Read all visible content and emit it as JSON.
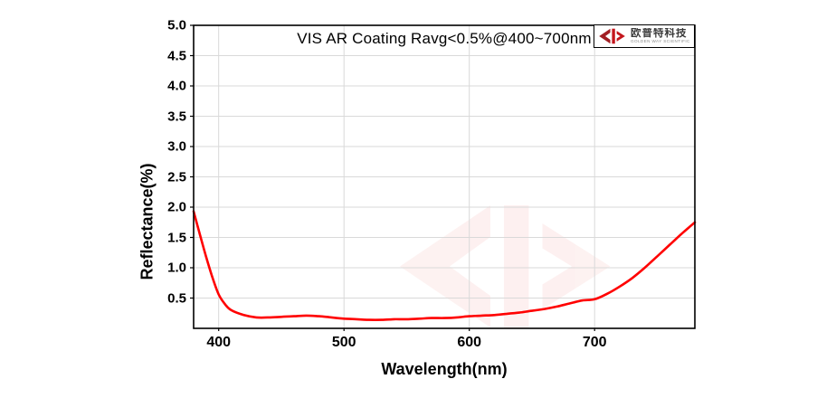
{
  "chart_data": {
    "type": "line",
    "title": "VIS AR Coating Ravg<0.5%@400~700nm",
    "xlabel": "Wavelength(nm)",
    "ylabel": "Reflectance(%)",
    "xlim": [
      380,
      780
    ],
    "ylim": [
      0,
      5
    ],
    "xticks": [
      400,
      500,
      600,
      700
    ],
    "yticks": [
      0.5,
      1.0,
      1.5,
      2.0,
      2.5,
      3.0,
      3.5,
      4.0,
      4.5,
      5.0
    ],
    "grid": true,
    "grid_color": "#d9d9d9",
    "axis_color": "#000000",
    "legend_position": "none",
    "series": [
      {
        "name": "Reflectance",
        "color": "#ff0000",
        "x": [
          380,
          385,
          390,
          395,
          400,
          405,
          410,
          420,
          430,
          440,
          450,
          460,
          470,
          480,
          490,
          500,
          510,
          520,
          530,
          540,
          550,
          560,
          570,
          580,
          590,
          600,
          610,
          620,
          630,
          640,
          650,
          660,
          670,
          680,
          690,
          700,
          710,
          720,
          730,
          740,
          750,
          760,
          770,
          780
        ],
        "y": [
          1.93,
          1.55,
          1.18,
          0.84,
          0.56,
          0.4,
          0.3,
          0.22,
          0.18,
          0.18,
          0.19,
          0.2,
          0.21,
          0.2,
          0.18,
          0.16,
          0.15,
          0.14,
          0.14,
          0.15,
          0.15,
          0.16,
          0.17,
          0.17,
          0.18,
          0.2,
          0.21,
          0.22,
          0.24,
          0.26,
          0.29,
          0.32,
          0.36,
          0.41,
          0.46,
          0.48,
          0.57,
          0.69,
          0.83,
          1.0,
          1.19,
          1.38,
          1.57,
          1.75
        ]
      }
    ],
    "watermark": "brand-logo-mark",
    "watermark_color": "#e8413c",
    "watermark_opacity": 0.07
  },
  "logo": {
    "brand_cn": "欧普特科技",
    "brand_en": "GOLDEN WAY SCIENTIFIC",
    "mark_color_dark": "#a21f24",
    "mark_color_bright": "#c4161c"
  }
}
